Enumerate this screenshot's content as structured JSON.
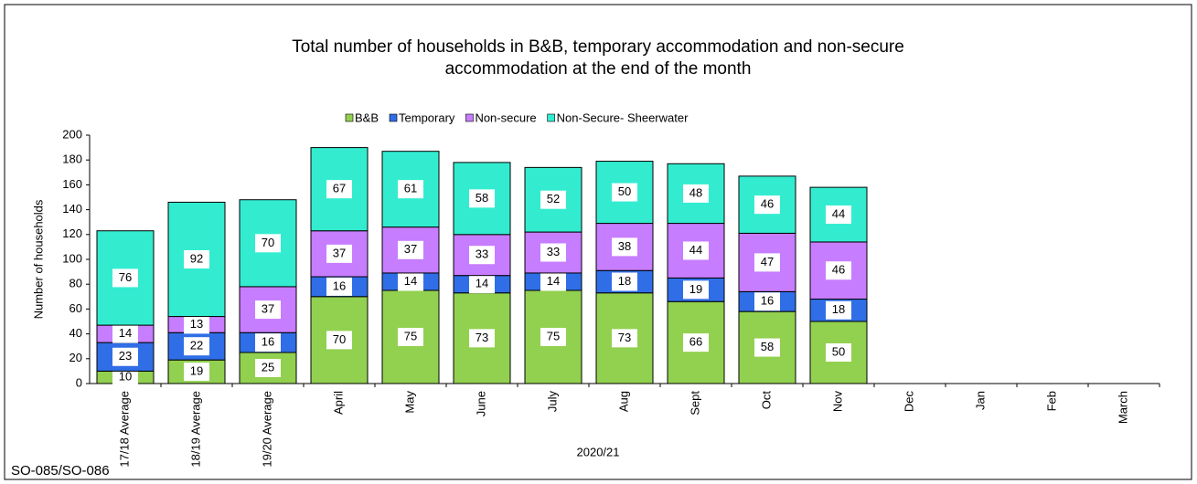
{
  "chart_data": {
    "type": "stacked_bar",
    "title": [
      "Total number of households in B&B, temporary accommodation and non-secure",
      "accommodation at the end of the month"
    ],
    "y_label": "Number of households",
    "x_label": "2020/21",
    "footnote": "SO-085/SO-086",
    "categories": [
      "17/18 Average",
      "18/19 Average",
      "19/20 Average",
      "April",
      "May",
      "June",
      "July",
      "Aug",
      "Sept",
      "Oct",
      "Nov",
      "Dec",
      "Jan",
      "Feb",
      "March"
    ],
    "series": [
      {
        "name": "B&B",
        "color": "#92d050",
        "values": [
          10,
          19,
          25,
          70,
          75,
          73,
          75,
          73,
          66,
          58,
          50,
          null,
          null,
          null,
          null
        ]
      },
      {
        "name": "Temporary",
        "color": "#2f6ee6",
        "values": [
          23,
          22,
          16,
          16,
          14,
          14,
          14,
          18,
          19,
          16,
          18,
          null,
          null,
          null,
          null
        ]
      },
      {
        "name": "Non-secure",
        "color": "#c77dff",
        "values": [
          14,
          13,
          37,
          37,
          37,
          33,
          33,
          38,
          44,
          47,
          46,
          null,
          null,
          null,
          null
        ]
      },
      {
        "name": "Non-Secure- Sheerwater",
        "color": "#33ecd0",
        "values": [
          76,
          92,
          70,
          67,
          61,
          58,
          52,
          50,
          48,
          46,
          44,
          null,
          null,
          null,
          null
        ]
      }
    ],
    "ylim": [
      0,
      200
    ],
    "yticks": [
      0,
      20,
      40,
      60,
      80,
      100,
      120,
      140,
      160,
      180,
      200
    ],
    "legend": "top"
  }
}
